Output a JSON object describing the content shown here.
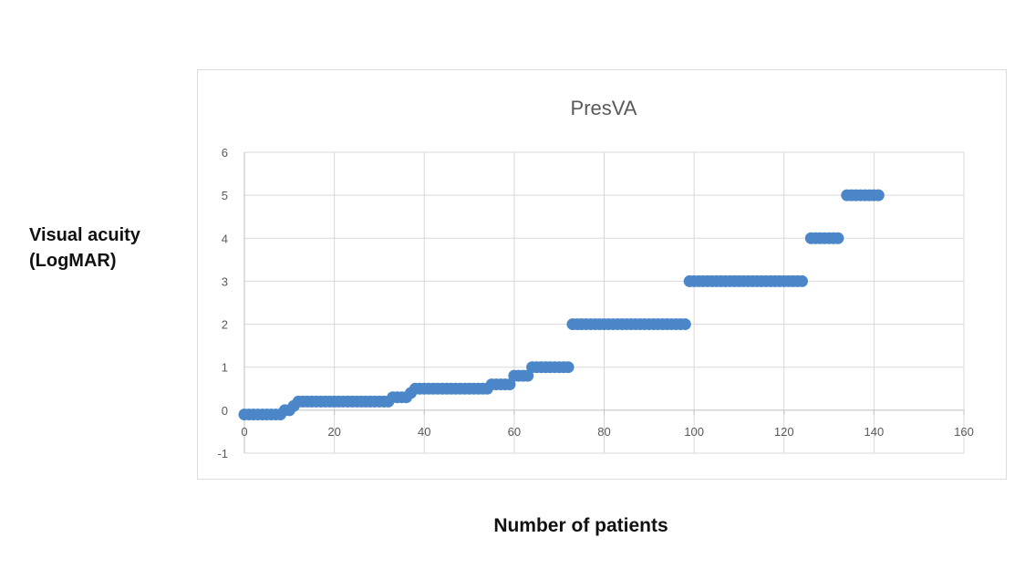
{
  "chart_data": {
    "type": "scatter",
    "title": "PresVA",
    "xlabel": "Number of patients",
    "ylabel_lines": [
      "Visual acuity",
      "(LogMAR)"
    ],
    "xlim": [
      0,
      160
    ],
    "ylim": [
      -1,
      6
    ],
    "x_ticks": [
      "0",
      "20",
      "40",
      "60",
      "80",
      "100",
      "120",
      "140",
      "160"
    ],
    "y_ticks": [
      "-1",
      "0",
      "1",
      "2",
      "3",
      "4",
      "5",
      "6"
    ],
    "grid": true,
    "legend": "none",
    "marker_color": "#4a86c8",
    "series": [
      {
        "points": [
          [
            0,
            -0.1
          ],
          [
            1,
            -0.1
          ],
          [
            2,
            -0.1
          ],
          [
            3,
            -0.1
          ],
          [
            4,
            -0.1
          ],
          [
            5,
            -0.1
          ],
          [
            6,
            -0.1
          ],
          [
            7,
            -0.1
          ],
          [
            8,
            -0.1
          ],
          [
            9,
            0.0
          ],
          [
            10,
            0.0
          ],
          [
            11,
            0.1
          ],
          [
            12,
            0.2
          ],
          [
            13,
            0.2
          ],
          [
            14,
            0.2
          ],
          [
            15,
            0.2
          ],
          [
            16,
            0.2
          ],
          [
            17,
            0.2
          ],
          [
            18,
            0.2
          ],
          [
            19,
            0.2
          ],
          [
            20,
            0.2
          ],
          [
            21,
            0.2
          ],
          [
            22,
            0.2
          ],
          [
            23,
            0.2
          ],
          [
            24,
            0.2
          ],
          [
            25,
            0.2
          ],
          [
            26,
            0.2
          ],
          [
            27,
            0.2
          ],
          [
            28,
            0.2
          ],
          [
            29,
            0.2
          ],
          [
            30,
            0.2
          ],
          [
            31,
            0.2
          ],
          [
            32,
            0.2
          ],
          [
            33,
            0.3
          ],
          [
            34,
            0.3
          ],
          [
            35,
            0.3
          ],
          [
            36,
            0.3
          ],
          [
            37,
            0.4
          ],
          [
            38,
            0.5
          ],
          [
            39,
            0.5
          ],
          [
            40,
            0.5
          ],
          [
            41,
            0.5
          ],
          [
            42,
            0.5
          ],
          [
            43,
            0.5
          ],
          [
            44,
            0.5
          ],
          [
            45,
            0.5
          ],
          [
            46,
            0.5
          ],
          [
            47,
            0.5
          ],
          [
            48,
            0.5
          ],
          [
            49,
            0.5
          ],
          [
            50,
            0.5
          ],
          [
            51,
            0.5
          ],
          [
            52,
            0.5
          ],
          [
            53,
            0.5
          ],
          [
            54,
            0.5
          ],
          [
            55,
            0.6
          ],
          [
            56,
            0.6
          ],
          [
            57,
            0.6
          ],
          [
            58,
            0.6
          ],
          [
            59,
            0.6
          ],
          [
            60,
            0.8
          ],
          [
            61,
            0.8
          ],
          [
            62,
            0.8
          ],
          [
            63,
            0.8
          ],
          [
            64,
            1.0
          ],
          [
            65,
            1.0
          ],
          [
            66,
            1.0
          ],
          [
            67,
            1.0
          ],
          [
            68,
            1.0
          ],
          [
            69,
            1.0
          ],
          [
            70,
            1.0
          ],
          [
            71,
            1.0
          ],
          [
            72,
            1.0
          ],
          [
            73,
            2.0
          ],
          [
            74,
            2.0
          ],
          [
            75,
            2.0
          ],
          [
            76,
            2.0
          ],
          [
            77,
            2.0
          ],
          [
            78,
            2.0
          ],
          [
            79,
            2.0
          ],
          [
            80,
            2.0
          ],
          [
            81,
            2.0
          ],
          [
            82,
            2.0
          ],
          [
            83,
            2.0
          ],
          [
            84,
            2.0
          ],
          [
            85,
            2.0
          ],
          [
            86,
            2.0
          ],
          [
            87,
            2.0
          ],
          [
            88,
            2.0
          ],
          [
            89,
            2.0
          ],
          [
            90,
            2.0
          ],
          [
            91,
            2.0
          ],
          [
            92,
            2.0
          ],
          [
            93,
            2.0
          ],
          [
            94,
            2.0
          ],
          [
            95,
            2.0
          ],
          [
            96,
            2.0
          ],
          [
            97,
            2.0
          ],
          [
            98,
            2.0
          ],
          [
            99,
            3.0
          ],
          [
            100,
            3.0
          ],
          [
            101,
            3.0
          ],
          [
            102,
            3.0
          ],
          [
            103,
            3.0
          ],
          [
            104,
            3.0
          ],
          [
            105,
            3.0
          ],
          [
            106,
            3.0
          ],
          [
            107,
            3.0
          ],
          [
            108,
            3.0
          ],
          [
            109,
            3.0
          ],
          [
            110,
            3.0
          ],
          [
            111,
            3.0
          ],
          [
            112,
            3.0
          ],
          [
            113,
            3.0
          ],
          [
            114,
            3.0
          ],
          [
            115,
            3.0
          ],
          [
            116,
            3.0
          ],
          [
            117,
            3.0
          ],
          [
            118,
            3.0
          ],
          [
            119,
            3.0
          ],
          [
            120,
            3.0
          ],
          [
            121,
            3.0
          ],
          [
            122,
            3.0
          ],
          [
            123,
            3.0
          ],
          [
            124,
            3.0
          ],
          [
            126,
            4.0
          ],
          [
            127,
            4.0
          ],
          [
            128,
            4.0
          ],
          [
            129,
            4.0
          ],
          [
            130,
            4.0
          ],
          [
            131,
            4.0
          ],
          [
            132,
            4.0
          ],
          [
            134,
            5.0
          ],
          [
            135,
            5.0
          ],
          [
            136,
            5.0
          ],
          [
            137,
            5.0
          ],
          [
            138,
            5.0
          ],
          [
            139,
            5.0
          ],
          [
            140,
            5.0
          ],
          [
            141,
            5.0
          ]
        ]
      }
    ]
  }
}
